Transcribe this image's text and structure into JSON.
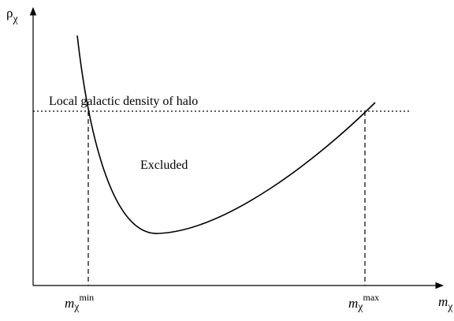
{
  "diagram": {
    "y_axis_label": {
      "symbol": "ρ",
      "subscript": "χ"
    },
    "x_axis_label": {
      "symbol": "m",
      "subscript": "χ"
    },
    "threshold_label": "Local galactic density of halo",
    "region_label": "Excluded",
    "lower_bound_label": {
      "symbol": "m",
      "subscript": "χ",
      "superscript": "min"
    },
    "upper_bound_label": {
      "symbol": "m",
      "subscript": "χ",
      "superscript": "max"
    }
  }
}
